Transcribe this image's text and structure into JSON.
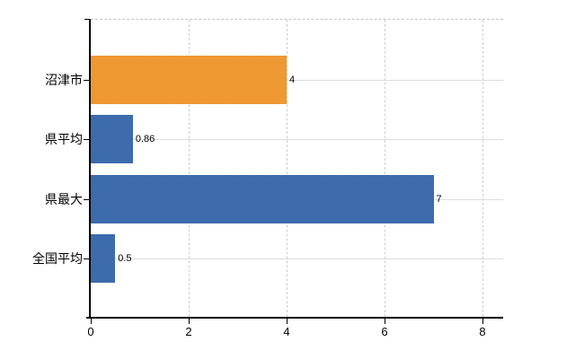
{
  "chart_data": {
    "type": "bar",
    "orientation": "horizontal",
    "categories": [
      "沼津市",
      "県平均",
      "県最大",
      "全国平均"
    ],
    "values": [
      4,
      0.86,
      7,
      0.5
    ],
    "value_labels": [
      "4",
      "0.86",
      "7",
      "0.5"
    ],
    "bar_fills": [
      {
        "light": "#f5a43c",
        "dark": "#e78d29"
      },
      {
        "light": "#4a77b5",
        "dark": "#305fa4"
      },
      {
        "light": "#4a77b5",
        "dark": "#305fa4"
      },
      {
        "light": "#4a77b5",
        "dark": "#305fa4"
      }
    ],
    "xlim": [
      0,
      8
    ],
    "x_ticks": [
      0,
      2,
      4,
      6,
      8
    ],
    "x_tick_labels": [
      "0",
      "2",
      "4",
      "6",
      "8"
    ],
    "grid": {
      "vertical_lines": true,
      "horizontal_row_lines": true,
      "top_border_dashed": true
    },
    "legend_position": "none"
  },
  "colors": {
    "background": "#ffffff",
    "axis": "#000000",
    "grid_vertical": "#cfcfcf",
    "grid_horizontal": "#dcdcdc",
    "top_border": "#c6c6c6",
    "text": "#000000",
    "highlight_bar": "#ee9832",
    "default_bar": "#3d6bad"
  }
}
